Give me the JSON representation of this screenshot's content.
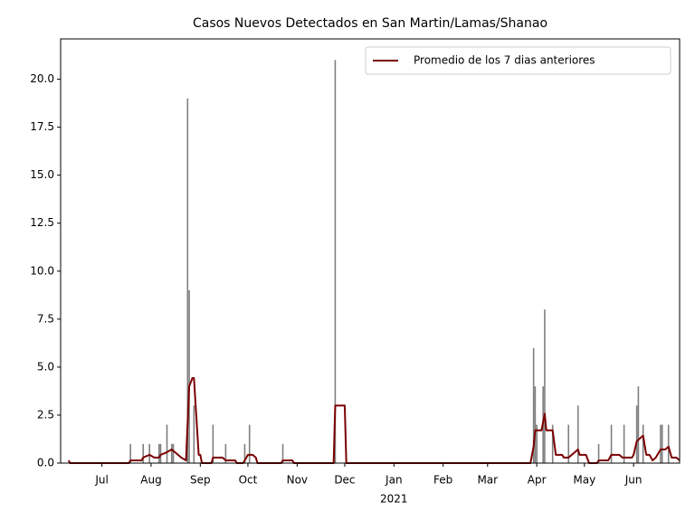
{
  "chart_data": {
    "type": "combo",
    "title": "Casos Nuevos Detectados en San Martin/Lamas/Shanao",
    "xlim": [
      "2020-06-05",
      "2021-06-30"
    ],
    "xticks": [
      {
        "value": "2020-07-01",
        "label": "Jul"
      },
      {
        "value": "2020-08-01",
        "label": "Aug"
      },
      {
        "value": "2020-09-01",
        "label": "Sep"
      },
      {
        "value": "2020-10-01",
        "label": "Oct"
      },
      {
        "value": "2020-11-01",
        "label": "Nov"
      },
      {
        "value": "2020-12-01",
        "label": "Dec"
      },
      {
        "value": "2021-01-01",
        "label": "Jan"
      },
      {
        "value": "2021-02-01",
        "label": "Feb"
      },
      {
        "value": "2021-03-01",
        "label": "Mar"
      },
      {
        "value": "2021-04-01",
        "label": "Apr"
      },
      {
        "value": "2021-05-01",
        "label": "May"
      },
      {
        "value": "2021-06-01",
        "label": "Jun"
      }
    ],
    "xtick_sublabels": [
      {
        "value": "2021-01-01",
        "label": "2021"
      }
    ],
    "ylim": [
      0,
      22.1
    ],
    "yticks": [
      {
        "value": 0,
        "label": "0.0"
      },
      {
        "value": 2.5,
        "label": "2.5"
      },
      {
        "value": 5,
        "label": "5.0"
      },
      {
        "value": 7.5,
        "label": "7.5"
      },
      {
        "value": 10,
        "label": "10.0"
      },
      {
        "value": 12.5,
        "label": "12.5"
      },
      {
        "value": 15,
        "label": "15.0"
      },
      {
        "value": 17.5,
        "label": "17.5"
      },
      {
        "value": 20,
        "label": "20.0"
      }
    ],
    "legend": "upper right",
    "series": [
      {
        "type": "bar",
        "color": "#7f7f7f",
        "x": [
          "2020-07-19",
          "2020-07-27",
          "2020-07-31",
          "2020-08-06",
          "2020-08-07",
          "2020-08-11",
          "2020-08-14",
          "2020-08-15",
          "2020-08-24",
          "2020-08-25",
          "2020-08-28",
          "2020-09-09",
          "2020-09-17",
          "2020-09-29",
          "2020-10-02",
          "2020-10-23",
          "2020-11-25",
          "2021-03-30",
          "2021-03-31",
          "2021-04-01",
          "2021-04-05",
          "2021-04-06",
          "2021-04-11",
          "2021-04-21",
          "2021-04-27",
          "2021-05-10",
          "2021-05-18",
          "2021-05-26",
          "2021-06-03",
          "2021-06-04",
          "2021-06-07",
          "2021-06-18",
          "2021-06-19",
          "2021-06-23"
        ],
        "values": [
          1,
          1,
          1,
          1,
          1,
          2,
          1,
          1,
          19,
          9,
          3,
          2,
          1,
          1,
          2,
          1,
          21,
          6,
          4,
          2,
          4,
          8,
          2,
          2,
          3,
          1,
          2,
          2,
          3,
          4,
          2,
          2,
          2,
          2
        ]
      },
      {
        "type": "line",
        "name": "Promedio de los 7 dias anteriores",
        "color": "#7b0000",
        "x": [
          "2020-06-10",
          "2020-06-11",
          "2020-07-18",
          "2020-07-19",
          "2020-07-26",
          "2020-07-27",
          "2020-07-31",
          "2020-08-03",
          "2020-08-06",
          "2020-08-07",
          "2020-08-11",
          "2020-08-14",
          "2020-08-16",
          "2020-08-20",
          "2020-08-23",
          "2020-08-25",
          "2020-08-27",
          "2020-08-28",
          "2020-08-31",
          "2020-09-01",
          "2020-09-02",
          "2020-09-08",
          "2020-09-09",
          "2020-09-15",
          "2020-09-17",
          "2020-09-23",
          "2020-09-24",
          "2020-09-28",
          "2020-09-29",
          "2020-10-01",
          "2020-10-04",
          "2020-10-06",
          "2020-10-07",
          "2020-10-22",
          "2020-10-23",
          "2020-10-29",
          "2020-10-30",
          "2020-11-24",
          "2020-11-25",
          "2020-12-01",
          "2020-12-02",
          "2021-03-28",
          "2021-03-30",
          "2021-03-31",
          "2021-04-04",
          "2021-04-06",
          "2021-04-07",
          "2021-04-11",
          "2021-04-13",
          "2021-04-17",
          "2021-04-18",
          "2021-04-21",
          "2021-04-27",
          "2021-04-28",
          "2021-05-02",
          "2021-05-04",
          "2021-05-09",
          "2021-05-10",
          "2021-05-16",
          "2021-05-18",
          "2021-05-23",
          "2021-05-25",
          "2021-05-31",
          "2021-06-01",
          "2021-06-03",
          "2021-06-05",
          "2021-06-07",
          "2021-06-09",
          "2021-06-11",
          "2021-06-13",
          "2021-06-15",
          "2021-06-18",
          "2021-06-21",
          "2021-06-23",
          "2021-06-25",
          "2021-06-28",
          "2021-06-30"
        ],
        "values": [
          0.14,
          0,
          0,
          0.14,
          0.14,
          0.29,
          0.43,
          0.29,
          0.29,
          0.43,
          0.57,
          0.71,
          0.57,
          0.29,
          0.14,
          4.0,
          4.43,
          4.43,
          0.43,
          0.43,
          0,
          0,
          0.29,
          0.29,
          0.14,
          0.14,
          0,
          0,
          0.14,
          0.43,
          0.43,
          0.29,
          0,
          0,
          0.14,
          0.14,
          0,
          0,
          3.0,
          3.0,
          0,
          0,
          0.86,
          1.71,
          1.71,
          2.57,
          1.71,
          1.71,
          0.43,
          0.43,
          0.29,
          0.29,
          0.71,
          0.43,
          0.43,
          0,
          0,
          0.14,
          0.14,
          0.43,
          0.43,
          0.29,
          0.29,
          0.43,
          1.14,
          1.29,
          1.43,
          0.43,
          0.43,
          0.14,
          0.29,
          0.71,
          0.71,
          0.86,
          0.29,
          0.29,
          0.14
        ]
      }
    ]
  }
}
